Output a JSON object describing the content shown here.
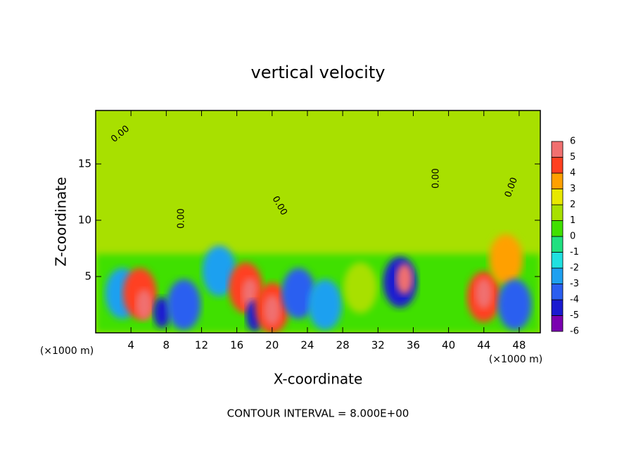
{
  "chart_data": {
    "type": "contour",
    "title": "vertical velocity",
    "x_label": "X-coordinate",
    "y_label": "Z-coordinate",
    "x_unit": "(×1000 m)",
    "footer": "CONTOUR INTERVAL = 8.000E+00",
    "contour_label": "0.00",
    "xlim": [
      0,
      50.4
    ],
    "ylim": [
      0,
      19.75
    ],
    "xticks": [
      4,
      8,
      12,
      16,
      20,
      24,
      28,
      32,
      36,
      40,
      44,
      48
    ],
    "yticks": [
      5,
      10,
      15
    ],
    "levels": [
      -6,
      -5,
      -4,
      -3,
      -2,
      -1,
      0,
      1,
      2,
      3,
      4,
      5,
      6
    ],
    "colors": [
      "#7a00b0",
      "#1a1ad0",
      "#2a5ef0",
      "#1ea0f0",
      "#20e0e0",
      "#20e080",
      "#40e000",
      "#a8e000",
      "#e8e800",
      "#ffa000",
      "#ff4020",
      "#f07070"
    ],
    "features": [
      {
        "x": 3,
        "z": 3.5,
        "value": -3
      },
      {
        "x": 5,
        "z": 3.5,
        "value": 4.5
      },
      {
        "x": 5.5,
        "z": 2.5,
        "value": 5.5
      },
      {
        "x": 7.5,
        "z": 1.8,
        "value": -5
      },
      {
        "x": 10,
        "z": 2.5,
        "value": -4
      },
      {
        "x": 14,
        "z": 5.5,
        "value": -3
      },
      {
        "x": 17,
        "z": 4,
        "value": 4.5
      },
      {
        "x": 17.5,
        "z": 3.5,
        "value": 5.5
      },
      {
        "x": 18,
        "z": 1.5,
        "value": -5
      },
      {
        "x": 20,
        "z": 2.2,
        "value": 4.5
      },
      {
        "x": 20,
        "z": 2,
        "value": 5.5
      },
      {
        "x": 23,
        "z": 3.5,
        "value": -4
      },
      {
        "x": 26,
        "z": 2.5,
        "value": -3
      },
      {
        "x": 30,
        "z": 4,
        "value": 1.5
      },
      {
        "x": 34.5,
        "z": 4.5,
        "value": -4.5
      },
      {
        "x": 35,
        "z": 4.8,
        "value": 5.5
      },
      {
        "x": 44,
        "z": 3.2,
        "value": 4.5
      },
      {
        "x": 44,
        "z": 3.5,
        "value": 5.5
      },
      {
        "x": 46.5,
        "z": 6.5,
        "value": 3.5
      },
      {
        "x": 47.5,
        "z": 2.5,
        "value": -4
      }
    ]
  }
}
